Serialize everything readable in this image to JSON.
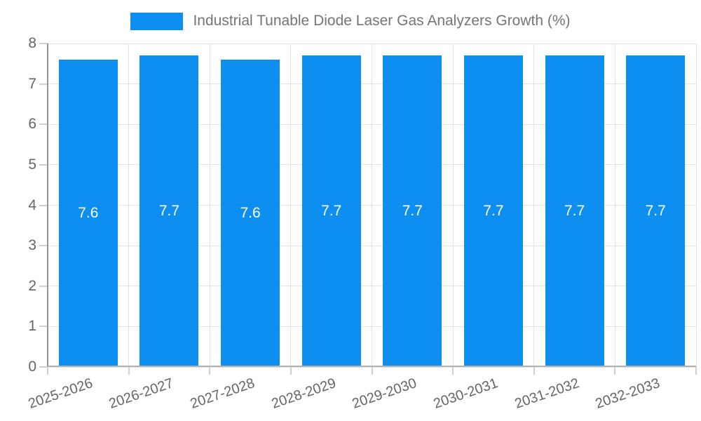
{
  "chart_data": {
    "type": "bar",
    "title": "Industrial Tunable Diode Laser Gas Analyzers Growth (%)",
    "categories": [
      "2025-2026",
      "2026-2027",
      "2027-2028",
      "2028-2029",
      "2029-2030",
      "2030-2031",
      "2031-2032",
      "2032-2033"
    ],
    "values": [
      7.6,
      7.7,
      7.6,
      7.7,
      7.7,
      7.7,
      7.7,
      7.7
    ],
    "value_labels": [
      "7.6",
      "7.7",
      "7.6",
      "7.7",
      "7.7",
      "7.7",
      "7.7",
      "7.7"
    ],
    "xlabel": "",
    "ylabel": "",
    "ylim": [
      0,
      8
    ],
    "yticks": [
      0,
      1,
      2,
      3,
      4,
      5,
      6,
      7,
      8
    ],
    "grid": true,
    "legend_position": "top-center"
  },
  "colors": {
    "bar": "#0d8ff2",
    "grid": "#e3e3e3",
    "axis_y": "#949494",
    "axis_x": "#b3b3b3",
    "tick": "#d0d0d0",
    "axis_text": "#666666",
    "legend_text": "#757575",
    "value_text": "#ffffff",
    "background": "#ffffff"
  }
}
